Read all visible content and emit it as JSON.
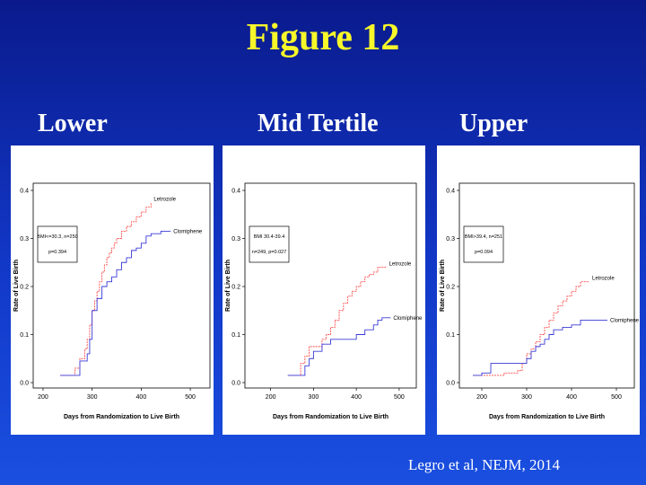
{
  "slide": {
    "title": "Figure 12",
    "citation": "Legro et al, NEJM, 2014",
    "labels": [
      "Lower",
      "Mid Tertile",
      "Upper"
    ]
  },
  "colors": {
    "letrozole": "#ff4a4a",
    "clomiphene": "#3a3ad8",
    "background": "#1238c8",
    "title": "#f7f72a"
  },
  "chart_data": [
    {
      "type": "line",
      "title": "",
      "xlabel": "Days from Randomization to Live Birth",
      "ylabel": "Rate of Live Birth",
      "xlim": [
        180,
        540
      ],
      "ylim": [
        0,
        0.4
      ],
      "xticks": [
        200,
        300,
        400,
        500
      ],
      "yticks": [
        0.0,
        0.1,
        0.2,
        0.3,
        0.4
      ],
      "legend_lines": [
        "BMI<=30.3, n=250",
        "p=0.394"
      ],
      "series": [
        {
          "name": "Letrozole",
          "color": "#ff4a4a",
          "x": [
            235,
            255,
            265,
            275,
            285,
            290,
            295,
            300,
            305,
            310,
            315,
            320,
            325,
            330,
            335,
            340,
            345,
            350,
            360,
            370,
            380,
            390,
            400,
            410,
            420
          ],
          "y": [
            0.015,
            0.015,
            0.03,
            0.05,
            0.07,
            0.09,
            0.12,
            0.15,
            0.17,
            0.19,
            0.21,
            0.23,
            0.245,
            0.26,
            0.27,
            0.28,
            0.29,
            0.3,
            0.315,
            0.325,
            0.335,
            0.345,
            0.355,
            0.365,
            0.375
          ]
        },
        {
          "name": "Clomiphene",
          "color": "#3a3ad8",
          "x": [
            235,
            260,
            275,
            290,
            295,
            300,
            310,
            320,
            330,
            340,
            350,
            360,
            370,
            380,
            390,
            400,
            410,
            420,
            430,
            440,
            460
          ],
          "y": [
            0.015,
            0.015,
            0.045,
            0.06,
            0.09,
            0.15,
            0.175,
            0.2,
            0.21,
            0.22,
            0.235,
            0.25,
            0.26,
            0.275,
            0.28,
            0.29,
            0.305,
            0.31,
            0.31,
            0.315,
            0.315
          ]
        }
      ]
    },
    {
      "type": "line",
      "title": "",
      "xlabel": "Days from Randomization to Live Birth",
      "ylabel": "Rate of Live Birth",
      "xlim": [
        140,
        540
      ],
      "ylim": [
        0,
        0.4
      ],
      "xticks": [
        200,
        300,
        400,
        500
      ],
      "yticks": [
        0.0,
        0.1,
        0.2,
        0.3,
        0.4
      ],
      "legend_lines": [
        "BMI 30.4-39.4",
        "n=249, p=0.027"
      ],
      "series": [
        {
          "name": "Letrozole",
          "color": "#ff4a4a",
          "x": [
            240,
            260,
            270,
            280,
            290,
            300,
            310,
            320,
            330,
            340,
            350,
            360,
            370,
            380,
            390,
            400,
            410,
            420,
            430,
            440,
            450,
            470
          ],
          "y": [
            0.015,
            0.015,
            0.04,
            0.055,
            0.075,
            0.075,
            0.075,
            0.09,
            0.1,
            0.115,
            0.13,
            0.15,
            0.165,
            0.18,
            0.19,
            0.2,
            0.21,
            0.22,
            0.225,
            0.23,
            0.24,
            0.24
          ]
        },
        {
          "name": "Clomiphene",
          "color": "#3a3ad8",
          "x": [
            240,
            270,
            280,
            290,
            300,
            320,
            340,
            360,
            380,
            400,
            420,
            440,
            450,
            460,
            480
          ],
          "y": [
            0.015,
            0.015,
            0.035,
            0.05,
            0.065,
            0.08,
            0.09,
            0.09,
            0.09,
            0.1,
            0.11,
            0.12,
            0.13,
            0.135,
            0.135
          ]
        }
      ]
    },
    {
      "type": "line",
      "title": "",
      "xlabel": "Days from Randomization to Live Birth",
      "ylabel": "Rate of Live Birth",
      "xlim": [
        150,
        540
      ],
      "ylim": [
        0,
        0.4
      ],
      "xticks": [
        200,
        300,
        400,
        500
      ],
      "yticks": [
        0.0,
        0.1,
        0.2,
        0.3,
        0.4
      ],
      "legend_lines": [
        "BMI>39.4, n=251",
        "p=0.094"
      ],
      "series": [
        {
          "name": "Letrozole",
          "color": "#ff4a4a",
          "x": [
            180,
            220,
            250,
            280,
            290,
            300,
            310,
            320,
            330,
            340,
            350,
            360,
            370,
            380,
            390,
            400,
            410,
            420,
            430,
            440
          ],
          "y": [
            0.015,
            0.015,
            0.02,
            0.025,
            0.04,
            0.06,
            0.07,
            0.085,
            0.1,
            0.115,
            0.13,
            0.145,
            0.16,
            0.17,
            0.18,
            0.19,
            0.2,
            0.21,
            0.21,
            0.21
          ]
        },
        {
          "name": "Clomiphene",
          "color": "#3a3ad8",
          "x": [
            180,
            200,
            220,
            280,
            300,
            310,
            320,
            330,
            340,
            350,
            360,
            380,
            400,
            420,
            440,
            460,
            480
          ],
          "y": [
            0.015,
            0.02,
            0.04,
            0.04,
            0.05,
            0.065,
            0.075,
            0.08,
            0.09,
            0.1,
            0.11,
            0.115,
            0.12,
            0.13,
            0.13,
            0.13,
            0.13
          ]
        }
      ]
    }
  ]
}
